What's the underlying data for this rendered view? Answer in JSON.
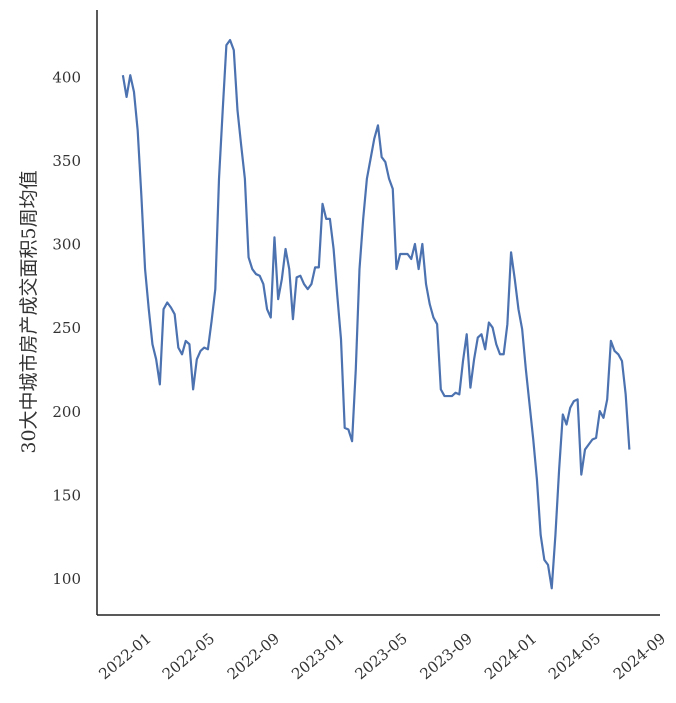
{
  "chart_data": {
    "type": "line",
    "y_label": "30大中城市房产成交面积5周均值",
    "x": [
      "2021-11-19",
      "2021-11-26",
      "2021-12-03",
      "2021-12-10",
      "2021-12-17",
      "2021-12-24",
      "2021-12-31",
      "2022-01-07",
      "2022-01-14",
      "2022-01-21",
      "2022-01-28",
      "2022-02-04",
      "2022-02-11",
      "2022-02-18",
      "2022-02-25",
      "2022-03-04",
      "2022-03-11",
      "2022-03-18",
      "2022-03-25",
      "2022-04-01",
      "2022-04-08",
      "2022-04-15",
      "2022-04-22",
      "2022-04-29",
      "2022-05-06",
      "2022-05-13",
      "2022-05-20",
      "2022-05-27",
      "2022-06-03",
      "2022-06-10",
      "2022-06-17",
      "2022-06-24",
      "2022-07-01",
      "2022-07-08",
      "2022-07-15",
      "2022-07-22",
      "2022-07-29",
      "2022-08-05",
      "2022-08-12",
      "2022-08-19",
      "2022-08-26",
      "2022-09-02",
      "2022-09-09",
      "2022-09-16",
      "2022-09-23",
      "2022-09-30",
      "2022-10-07",
      "2022-10-14",
      "2022-10-21",
      "2022-10-28",
      "2022-11-04",
      "2022-11-11",
      "2022-11-18",
      "2022-11-25",
      "2022-12-02",
      "2022-12-09",
      "2022-12-16",
      "2022-12-23",
      "2022-12-30",
      "2023-01-06",
      "2023-01-13",
      "2023-01-20",
      "2023-01-27",
      "2023-02-03",
      "2023-02-10",
      "2023-02-17",
      "2023-02-24",
      "2023-03-03",
      "2023-03-10",
      "2023-03-17",
      "2023-03-24",
      "2023-03-31",
      "2023-04-07",
      "2023-04-14",
      "2023-04-21",
      "2023-04-28",
      "2023-05-05",
      "2023-05-12",
      "2023-05-19",
      "2023-05-26",
      "2023-06-02",
      "2023-06-09",
      "2023-06-16",
      "2023-06-23",
      "2023-06-30",
      "2023-07-07",
      "2023-07-14",
      "2023-07-21",
      "2023-07-28",
      "2023-08-04",
      "2023-08-11",
      "2023-08-18",
      "2023-08-25",
      "2023-09-01",
      "2023-09-08",
      "2023-09-15",
      "2023-09-22",
      "2023-09-29",
      "2023-10-06",
      "2023-10-13",
      "2023-10-20",
      "2023-10-27",
      "2023-11-03",
      "2023-11-10",
      "2023-11-17",
      "2023-11-24",
      "2023-12-01",
      "2023-12-08",
      "2023-12-15",
      "2023-12-22",
      "2023-12-29",
      "2024-01-05",
      "2024-01-12",
      "2024-01-19",
      "2024-01-26",
      "2024-02-02",
      "2024-02-09",
      "2024-02-16",
      "2024-02-23",
      "2024-03-01",
      "2024-03-08",
      "2024-03-15",
      "2024-03-22",
      "2024-03-29",
      "2024-04-05",
      "2024-04-12",
      "2024-04-19",
      "2024-04-26",
      "2024-05-03",
      "2024-05-10",
      "2024-05-17",
      "2024-05-24",
      "2024-05-31",
      "2024-06-07",
      "2024-06-14",
      "2024-06-21",
      "2024-06-28",
      "2024-07-05"
    ],
    "series": [
      {
        "color": "#4c72b0",
        "values": [
          402,
          389,
          402,
          392,
          369,
          330,
          286,
          262,
          241,
          232,
          217,
          262,
          266,
          263,
          259,
          239,
          235,
          243,
          241,
          214,
          232,
          237,
          239,
          238,
          255,
          274,
          340,
          381,
          420,
          423,
          417,
          381,
          360,
          340,
          293,
          286,
          283,
          282,
          277,
          262,
          257,
          305,
          268,
          280,
          298,
          286,
          256,
          281,
          282,
          277,
          274,
          277,
          287,
          287,
          325,
          316,
          316,
          298,
          270,
          244,
          191,
          190,
          183,
          226,
          286,
          316,
          340,
          352,
          364,
          372,
          353,
          350,
          340,
          334,
          286,
          295,
          295,
          295,
          292,
          301,
          286,
          301,
          277,
          265,
          257,
          253,
          214,
          210,
          210,
          210,
          212,
          211,
          231,
          247,
          215,
          232,
          245,
          247,
          238,
          254,
          251,
          241,
          235,
          235,
          253,
          296,
          280,
          262,
          250,
          226,
          205,
          184,
          160,
          127,
          112,
          109,
          95,
          127,
          166,
          199,
          193,
          203,
          207,
          208,
          163,
          178,
          181,
          184,
          185,
          201,
          197,
          208,
          243,
          237,
          235,
          231,
          211,
          178
        ]
      }
    ],
    "xlim": [
      "2021-10",
      "2024-09"
    ],
    "xticks": [
      "2022-01",
      "2022-05",
      "2022-09",
      "2023-01",
      "2023-05",
      "2023-09",
      "2024-01",
      "2024-05",
      "2024-09"
    ],
    "ylim": [
      79,
      441
    ],
    "yticks": [
      100,
      150,
      200,
      250,
      300,
      350,
      400
    ],
    "grid": false
  }
}
